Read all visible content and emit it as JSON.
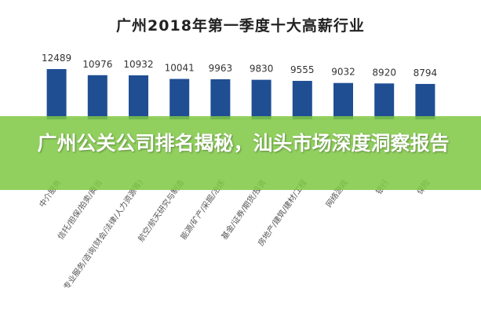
{
  "chart_data": {
    "type": "bar",
    "title": "广州2018年第一季度十大高薪行业",
    "categories": [
      "中介服务",
      "信托/担保/拍卖/典当",
      "专业服务/咨询(财会/法律/人力资源等)",
      "航空/航天研究与制造",
      "能源/矿产/采掘/冶炼",
      "基金/证券/期货/投资",
      "房地产/建筑/建材/工程",
      "网络游戏",
      "银行",
      "保险"
    ],
    "values": [
      12489,
      10976,
      10932,
      10041,
      9963,
      9830,
      9555,
      9032,
      8920,
      8794
    ],
    "colors": {
      "bar": "#1f4e93",
      "value_label": "#333333",
      "axis": "#d9d9d9",
      "category_label": "#555555"
    }
  },
  "banner": {
    "text": "广州公关公司排名揭秘，汕头市场深度洞察报告",
    "color": "#7ec842"
  }
}
